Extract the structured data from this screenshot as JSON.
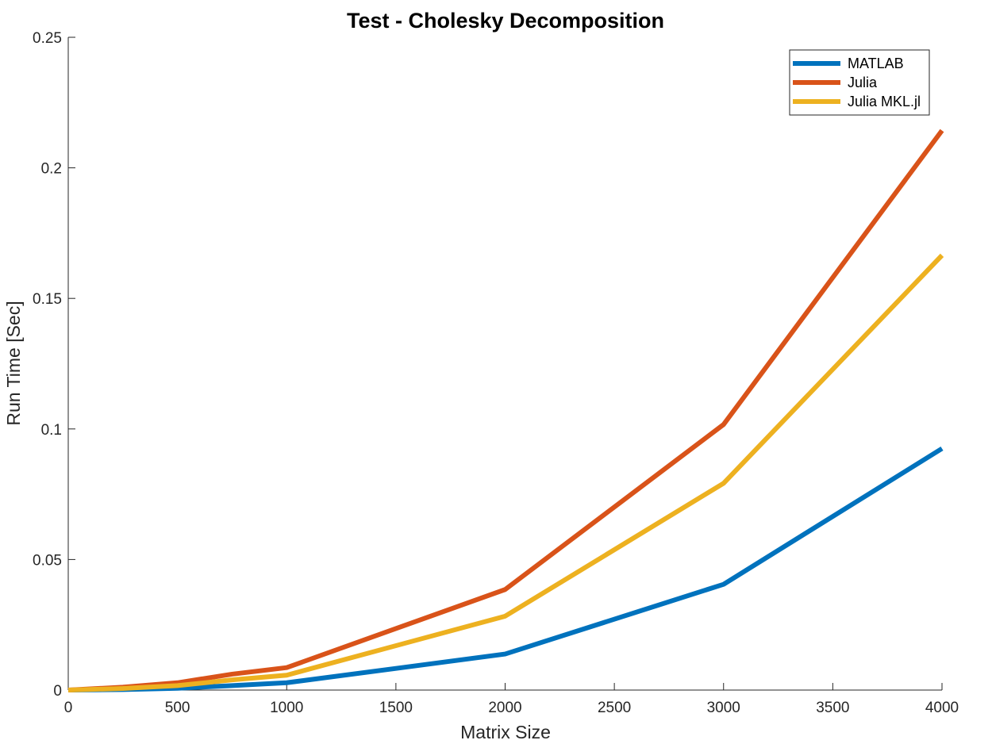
{
  "chart_data": {
    "type": "line",
    "title": "Test - Cholesky Decomposition",
    "xlabel": "Matrix Size",
    "ylabel": "Run Time  [Sec]",
    "xlim": [
      0,
      4000
    ],
    "ylim": [
      0,
      0.25
    ],
    "xticks": [
      0,
      500,
      1000,
      1500,
      2000,
      2500,
      3000,
      3500,
      4000
    ],
    "xtick_labels": [
      "0",
      "500",
      "1000",
      "1500",
      "2000",
      "2500",
      "3000",
      "3500",
      "4000"
    ],
    "yticks": [
      0,
      0.05,
      0.1,
      0.15,
      0.2,
      0.25
    ],
    "ytick_labels": [
      "0",
      "0.05",
      "0.1",
      "0.15",
      "0.2",
      "0.25"
    ],
    "grid": false,
    "legend_position": "top-right",
    "x": [
      0,
      250,
      500,
      750,
      1000,
      2000,
      3000,
      4000
    ],
    "series": [
      {
        "name": "MATLAB",
        "color": "#0072BD",
        "values": [
          0.0,
          0.0002,
          0.0007,
          0.0017,
          0.0028,
          0.0138,
          0.0405,
          0.0925
        ]
      },
      {
        "name": "Julia",
        "color": "#D95319",
        "values": [
          0.0,
          0.0011,
          0.0028,
          0.0061,
          0.0086,
          0.0385,
          0.1017,
          0.2143
        ]
      },
      {
        "name": "Julia MKL.jl",
        "color": "#EDB120",
        "values": [
          0.0,
          0.0006,
          0.0017,
          0.0039,
          0.0057,
          0.0283,
          0.0792,
          0.1665
        ]
      }
    ]
  }
}
